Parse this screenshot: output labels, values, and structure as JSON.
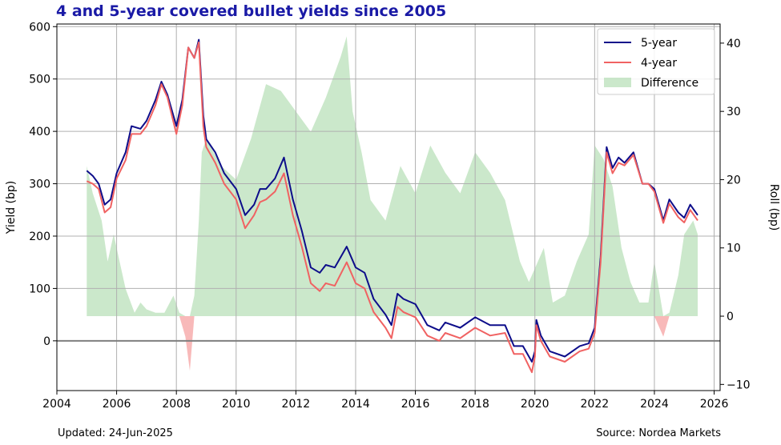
{
  "title": "4 and 5-year covered bullet yields since 2005",
  "footer": {
    "updated": "Updated: 24-Jun-2025",
    "source": "Source: Nordea Markets"
  },
  "chart_data": {
    "type": "line",
    "xlabel": "",
    "ylabel": "Yield (bp)",
    "y2label": "Roll (bp)",
    "xlim": [
      2004,
      2026.2
    ],
    "ylim": [
      -95,
      605
    ],
    "y2lim": [
      -10.9,
      42.8
    ],
    "xticks": [
      2004,
      2006,
      2008,
      2010,
      2012,
      2014,
      2016,
      2018,
      2020,
      2022,
      2024,
      2026
    ],
    "yticks": [
      0,
      100,
      200,
      300,
      400,
      500,
      600
    ],
    "y2ticks": [
      -10,
      0,
      10,
      20,
      30,
      40
    ],
    "grid": true,
    "zero_line": 0,
    "legend_position": "top-right",
    "colors": {
      "five_year": "#0d0d8a",
      "four_year": "#f06262",
      "diff_pos": "#a9d8a9",
      "diff_neg": "#f7b1b1",
      "title": "#1a1aa6"
    },
    "series": [
      {
        "name": "5-year",
        "x": [
          2005.0,
          2005.2,
          2005.4,
          2005.6,
          2005.8,
          2006.0,
          2006.3,
          2006.5,
          2006.8,
          2007.0,
          2007.3,
          2007.5,
          2007.7,
          2008.0,
          2008.2,
          2008.4,
          2008.6,
          2008.75,
          2008.9,
          2009.0,
          2009.3,
          2009.6,
          2010.0,
          2010.3,
          2010.6,
          2010.8,
          2011.0,
          2011.3,
          2011.6,
          2011.9,
          2012.2,
          2012.5,
          2012.8,
          2013.0,
          2013.3,
          2013.7,
          2014.0,
          2014.3,
          2014.6,
          2015.0,
          2015.2,
          2015.4,
          2015.6,
          2016.0,
          2016.4,
          2016.8,
          2017.0,
          2017.5,
          2018.0,
          2018.5,
          2019.0,
          2019.3,
          2019.6,
          2019.9,
          2020.0,
          2020.05,
          2020.2,
          2020.5,
          2021.0,
          2021.5,
          2021.8,
          2022.0,
          2022.2,
          2022.4,
          2022.6,
          2022.8,
          2023.0,
          2023.3,
          2023.6,
          2023.8,
          2024.0,
          2024.3,
          2024.5,
          2024.8,
          2025.0,
          2025.2,
          2025.45
        ],
        "values": [
          325,
          315,
          300,
          260,
          270,
          320,
          360,
          410,
          405,
          420,
          460,
          495,
          470,
          410,
          460,
          560,
          540,
          575,
          430,
          385,
          360,
          320,
          290,
          240,
          260,
          290,
          290,
          310,
          350,
          270,
          210,
          140,
          130,
          145,
          140,
          180,
          140,
          130,
          80,
          50,
          30,
          90,
          80,
          70,
          30,
          20,
          35,
          25,
          45,
          30,
          30,
          -10,
          -10,
          -40,
          -20,
          40,
          10,
          -20,
          -30,
          -10,
          -5,
          25,
          160,
          370,
          330,
          350,
          340,
          360,
          300,
          300,
          290,
          230,
          270,
          245,
          235,
          260,
          240
        ]
      },
      {
        "name": "4-year",
        "x": [
          2005.0,
          2005.2,
          2005.4,
          2005.6,
          2005.8,
          2006.0,
          2006.3,
          2006.5,
          2006.8,
          2007.0,
          2007.3,
          2007.5,
          2007.7,
          2008.0,
          2008.2,
          2008.4,
          2008.6,
          2008.75,
          2008.9,
          2009.0,
          2009.3,
          2009.6,
          2010.0,
          2010.3,
          2010.6,
          2010.8,
          2011.0,
          2011.3,
          2011.6,
          2011.9,
          2012.2,
          2012.5,
          2012.8,
          2013.0,
          2013.3,
          2013.7,
          2014.0,
          2014.3,
          2014.6,
          2015.0,
          2015.2,
          2015.4,
          2015.6,
          2016.0,
          2016.4,
          2016.8,
          2017.0,
          2017.5,
          2018.0,
          2018.5,
          2019.0,
          2019.3,
          2019.6,
          2019.9,
          2020.0,
          2020.05,
          2020.2,
          2020.5,
          2021.0,
          2021.5,
          2021.8,
          2022.0,
          2022.2,
          2022.4,
          2022.6,
          2022.8,
          2023.0,
          2023.3,
          2023.6,
          2023.8,
          2024.0,
          2024.3,
          2024.5,
          2024.8,
          2025.0,
          2025.2,
          2025.45
        ],
        "values": [
          305,
          300,
          290,
          245,
          255,
          310,
          345,
          395,
          395,
          410,
          450,
          490,
          465,
          395,
          450,
          560,
          540,
          570,
          410,
          370,
          340,
          300,
          270,
          215,
          240,
          265,
          270,
          285,
          320,
          240,
          180,
          110,
          95,
          110,
          105,
          150,
          110,
          100,
          55,
          25,
          5,
          65,
          55,
          45,
          10,
          0,
          15,
          5,
          25,
          10,
          15,
          -25,
          -25,
          -60,
          -30,
          30,
          0,
          -30,
          -40,
          -20,
          -15,
          15,
          150,
          360,
          320,
          340,
          335,
          355,
          300,
          300,
          285,
          225,
          262,
          236,
          226,
          250,
          230
        ]
      },
      {
        "name": "Difference",
        "x": [
          2005.0,
          2005.2,
          2005.5,
          2005.7,
          2005.9,
          2006.1,
          2006.3,
          2006.6,
          2006.8,
          2007.0,
          2007.3,
          2007.6,
          2007.9,
          2008.1,
          2008.3,
          2008.45,
          2008.6,
          2008.75,
          2008.85,
          2009.0,
          2009.5,
          2010.0,
          2010.5,
          2011.0,
          2011.5,
          2012.0,
          2012.5,
          2013.0,
          2013.5,
          2013.7,
          2013.9,
          2014.2,
          2014.5,
          2015.0,
          2015.5,
          2016.0,
          2016.5,
          2017.0,
          2017.5,
          2018.0,
          2018.5,
          2019.0,
          2019.5,
          2019.8,
          2020.0,
          2020.3,
          2020.6,
          2021.0,
          2021.4,
          2021.8,
          2022.0,
          2022.3,
          2022.6,
          2022.9,
          2023.2,
          2023.5,
          2023.8,
          2024.0,
          2024.3,
          2024.5,
          2024.8,
          2025.0,
          2025.3,
          2025.45
        ],
        "values": [
          22,
          18,
          14,
          8,
          12,
          8,
          4,
          0.5,
          2,
          1,
          0.5,
          0.5,
          3,
          0.5,
          -3,
          -8,
          3,
          14,
          24,
          26,
          22,
          20,
          26,
          34,
          33,
          30,
          27,
          32,
          38,
          41,
          30,
          24,
          17,
          14,
          22,
          18,
          25,
          21,
          18,
          24,
          21,
          17,
          8,
          5,
          7,
          10,
          2,
          3,
          8,
          12,
          25,
          23,
          19,
          10,
          5,
          2,
          2,
          8,
          -3,
          0.5,
          6,
          12,
          14,
          12
        ]
      }
    ]
  }
}
